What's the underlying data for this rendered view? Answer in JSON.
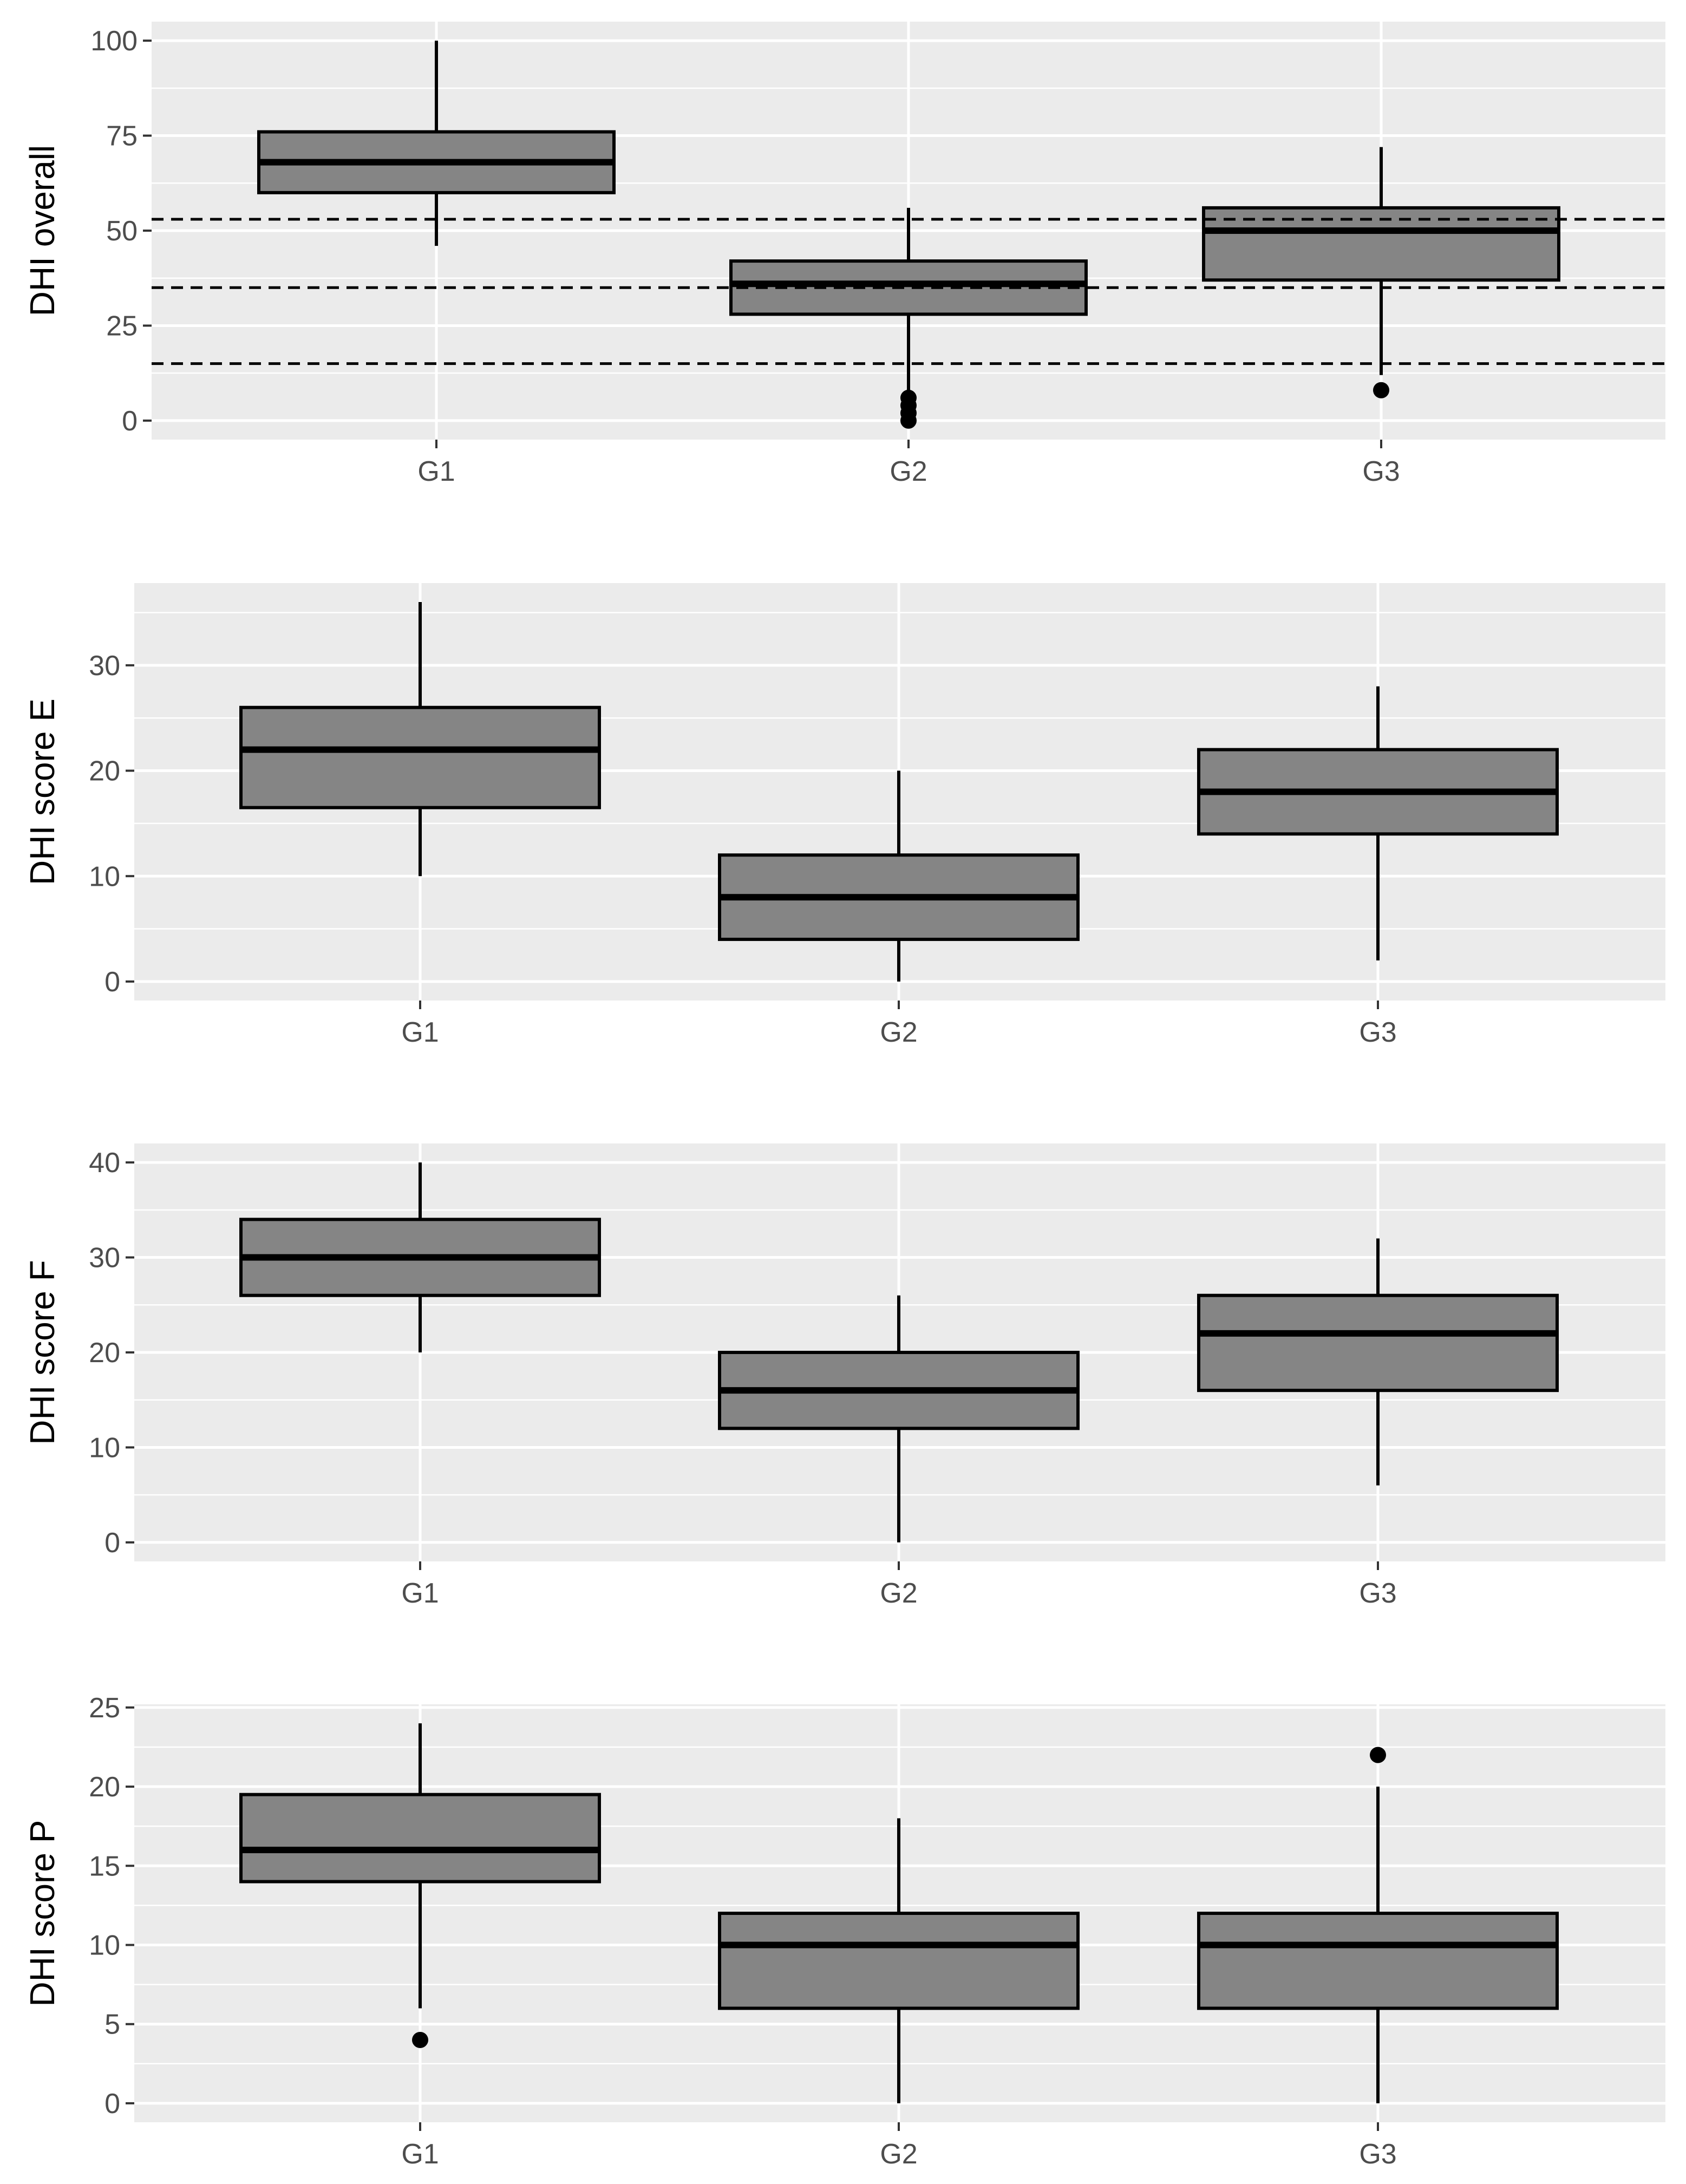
{
  "chart_data": [
    {
      "type": "boxplot",
      "ylabel": "DHI overall",
      "categories": [
        "G1",
        "G2",
        "G3"
      ],
      "ylim": [
        -5,
        105
      ],
      "yticks": [
        0,
        25,
        50,
        75,
        100
      ],
      "reference_lines": [
        53,
        35,
        15
      ],
      "boxes": [
        {
          "category": "G1",
          "whisker_low": 46,
          "q1": 60,
          "median": 68,
          "q3": 76,
          "whisker_high": 100,
          "outliers": []
        },
        {
          "category": "G2",
          "whisker_low": 8,
          "q1": 28,
          "median": 36,
          "q3": 42,
          "whisker_high": 56,
          "outliers": [
            0,
            2,
            4,
            6
          ]
        },
        {
          "category": "G3",
          "whisker_low": 12,
          "q1": 37,
          "median": 50,
          "q3": 56,
          "whisker_high": 72,
          "outliers": [
            8
          ]
        }
      ]
    },
    {
      "type": "boxplot",
      "ylabel": "DHI score E",
      "categories": [
        "G1",
        "G2",
        "G3"
      ],
      "ylim": [
        -1.8,
        37.8
      ],
      "yticks": [
        0,
        10,
        20,
        30
      ],
      "reference_lines": [],
      "boxes": [
        {
          "category": "G1",
          "whisker_low": 10,
          "q1": 16.5,
          "median": 22,
          "q3": 26,
          "whisker_high": 36,
          "outliers": []
        },
        {
          "category": "G2",
          "whisker_low": 0,
          "q1": 4,
          "median": 8,
          "q3": 12,
          "whisker_high": 20,
          "outliers": []
        },
        {
          "category": "G3",
          "whisker_low": 2,
          "q1": 14,
          "median": 18,
          "q3": 22,
          "whisker_high": 28,
          "outliers": []
        }
      ]
    },
    {
      "type": "boxplot",
      "ylabel": "DHI score F",
      "categories": [
        "G1",
        "G2",
        "G3"
      ],
      "ylim": [
        -2,
        42
      ],
      "yticks": [
        0,
        10,
        20,
        30,
        40
      ],
      "reference_lines": [],
      "boxes": [
        {
          "category": "G1",
          "whisker_low": 20,
          "q1": 26,
          "median": 30,
          "q3": 34,
          "whisker_high": 40,
          "outliers": []
        },
        {
          "category": "G2",
          "whisker_low": 0,
          "q1": 12,
          "median": 16,
          "q3": 20,
          "whisker_high": 26,
          "outliers": []
        },
        {
          "category": "G3",
          "whisker_low": 6,
          "q1": 16,
          "median": 22,
          "q3": 26,
          "whisker_high": 32,
          "outliers": []
        }
      ]
    },
    {
      "type": "boxplot",
      "ylabel": "DHI score P",
      "categories": [
        "G1",
        "G2",
        "G3"
      ],
      "ylim": [
        -1.2,
        25.2
      ],
      "yticks": [
        0,
        5,
        10,
        15,
        20,
        25
      ],
      "reference_lines": [],
      "boxes": [
        {
          "category": "G1",
          "whisker_low": 6,
          "q1": 14,
          "median": 16,
          "q3": 19.5,
          "whisker_high": 24,
          "outliers": [
            4
          ]
        },
        {
          "category": "G2",
          "whisker_low": 0,
          "q1": 6,
          "median": 10,
          "q3": 12,
          "whisker_high": 18,
          "outliers": []
        },
        {
          "category": "G3",
          "whisker_low": 0,
          "q1": 6,
          "median": 10,
          "q3": 12,
          "whisker_high": 20,
          "outliers": [
            22
          ]
        }
      ]
    }
  ],
  "colors": {
    "panel_background": "#ebebeb",
    "grid": "#ffffff",
    "box_fill": "#858585",
    "box_stroke": "#000000",
    "tick_text": "#4d4d4d"
  }
}
